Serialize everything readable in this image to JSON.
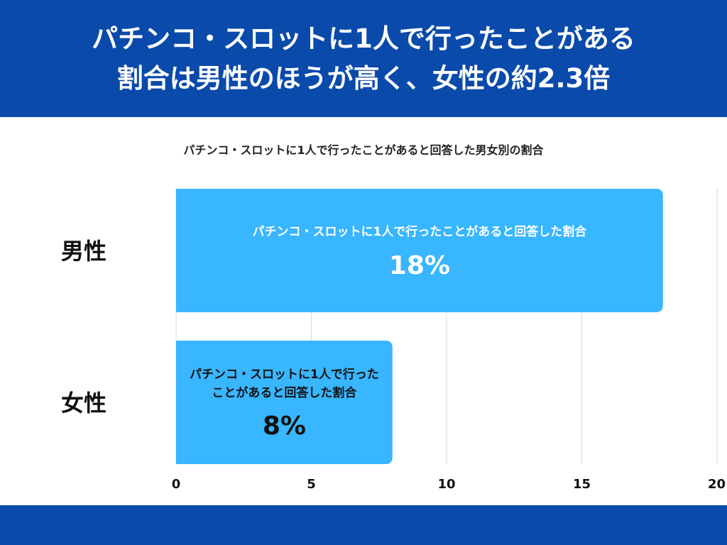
{
  "header": {
    "title_line1": "パチンコ・スロットに1人で行ったことがある",
    "title_line2": "割合は男性のほうが高く、女性の約2.3倍"
  },
  "colors": {
    "header_bg": "#0a4aab",
    "bar": "#38b6ff",
    "bar_text_male": "#ffffff",
    "bar_text_female": "#111111",
    "grid": "#d9d9d9"
  },
  "chart_data": {
    "type": "bar",
    "orientation": "horizontal",
    "title": "パチンコ・スロットに1人で行ったことがあると回答した男女別の割合",
    "categories": [
      "男性",
      "女性"
    ],
    "series": [
      {
        "values": [
          18,
          8
        ],
        "data_labels": [
          "18%",
          "8%"
        ],
        "bar_captions": [
          [
            "パチンコ・スロットに1人で行ったことがあると回答した割合"
          ],
          [
            "パチンコ・スロットに1人で行った",
            "ことがあると回答した割合"
          ]
        ]
      }
    ],
    "xlim": [
      0,
      20
    ],
    "x_ticks": [
      "0",
      "5",
      "10",
      "15",
      "20"
    ],
    "grid": true,
    "legend": "none"
  }
}
